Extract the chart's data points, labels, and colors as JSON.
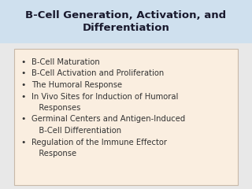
{
  "title": "B-Cell Generation, Activation, and\nDifferentiation",
  "title_bg_color": "#cfe0ee",
  "title_fontsize": 9.5,
  "title_color": "#1a1a2e",
  "body_bg_color": "#faeee0",
  "body_border_color": "#c8b8a8",
  "page_bg_color": "#e8e8e8",
  "bullet_items": [
    "B-Cell Maturation",
    "B-Cell Activation and Proliferation",
    "The Humoral Response",
    "In Vivo Sites for Induction of Humoral\n   Responses",
    "Germinal Centers and Antigen-Induced\n   B-Cell Differentiation",
    "Regulation of the Immune Effector\n   Response"
  ],
  "bullet_fontsize": 7.2,
  "bullet_color": "#333333"
}
